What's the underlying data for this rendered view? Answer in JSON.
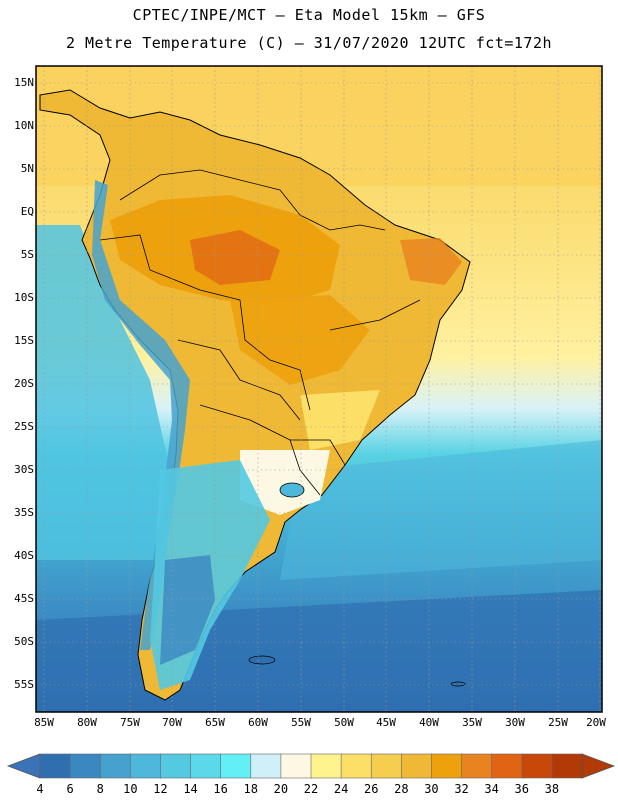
{
  "header": {
    "title_line1": "CPTEC/INPE/MCT –  Eta Model 15km – GFS",
    "title_line2": "2 Metre Temperature (C) – 31/07/2020 12UTC fct=172h"
  },
  "axes": {
    "lat_labels": [
      "15N",
      "10N",
      "5N",
      "EQ",
      "5S",
      "10S",
      "15S",
      "20S",
      "25S",
      "30S",
      "35S",
      "40S",
      "45S",
      "50S",
      "55S"
    ],
    "lon_labels": [
      "85W",
      "80W",
      "75W",
      "70W",
      "65W",
      "60W",
      "55W",
      "50W",
      "45W",
      "40W",
      "35W",
      "30W",
      "25W",
      "20W"
    ]
  },
  "colorbar": {
    "labels": [
      "4",
      "6",
      "8",
      "10",
      "12",
      "14",
      "16",
      "18",
      "20",
      "22",
      "24",
      "26",
      "28",
      "30",
      "32",
      "34",
      "36",
      "38"
    ],
    "colors": [
      "#2f6fb0",
      "#3b87c2",
      "#45a2cf",
      "#4db7dc",
      "#53c9e2",
      "#5ad9ea",
      "#62f0f6",
      "#cfeff9",
      "#fdf8e4",
      "#fff38e",
      "#fbdf67",
      "#f5cd4f",
      "#f0b935",
      "#eda20d",
      "#e88320",
      "#e06414",
      "#c8480a",
      "#b23a06"
    ],
    "under_color": "#3a73b8",
    "over_color": "#b23a06"
  },
  "legend": {
    "variable": "2 Metre Temperature",
    "units": "C"
  }
}
